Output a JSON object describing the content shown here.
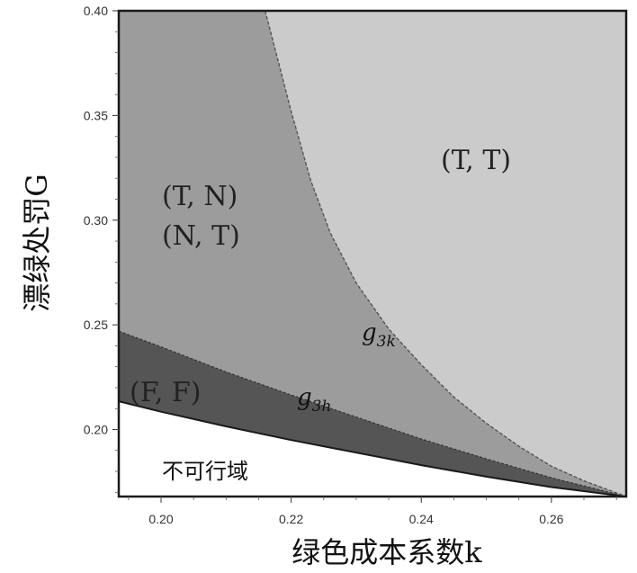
{
  "chart_data": {
    "type": "area",
    "xlabel": "绿色成本系数k",
    "ylabel": "漂绿处罚G",
    "xlim": [
      0.1935,
      0.2715
    ],
    "ylim": [
      0.168,
      0.4
    ],
    "x_ticks": [
      "0.20",
      "0.22",
      "0.24",
      "0.26"
    ],
    "x_tick_values": [
      0.2,
      0.22,
      0.24,
      0.26
    ],
    "y_ticks": [
      "0.20",
      "0.25",
      "0.30",
      "0.35",
      "0.40"
    ],
    "y_tick_values": [
      0.2,
      0.25,
      0.3,
      0.35,
      0.4
    ],
    "colors": {
      "TT": "#cbcbcb",
      "TN": "#9c9c9c",
      "FF": "#555555",
      "infeasible": "#ffffff",
      "frame": "#1a1a1a"
    },
    "curves": {
      "feasible_boundary": [
        [
          0.1935,
          0.2135
        ],
        [
          0.2,
          0.2085
        ],
        [
          0.21,
          0.2015
        ],
        [
          0.22,
          0.195
        ],
        [
          0.23,
          0.189
        ],
        [
          0.24,
          0.183
        ],
        [
          0.25,
          0.1775
        ],
        [
          0.26,
          0.1725
        ],
        [
          0.2715,
          0.168
        ]
      ],
      "g3h": [
        [
          0.1935,
          0.247
        ],
        [
          0.2,
          0.2395
        ],
        [
          0.21,
          0.2275
        ],
        [
          0.22,
          0.2165
        ],
        [
          0.23,
          0.206
        ],
        [
          0.24,
          0.1955
        ],
        [
          0.25,
          0.186
        ],
        [
          0.26,
          0.177
        ],
        [
          0.2715,
          0.168
        ]
      ],
      "g3k": [
        [
          0.216,
          0.4
        ],
        [
          0.218,
          0.376
        ],
        [
          0.22,
          0.352
        ],
        [
          0.223,
          0.319
        ],
        [
          0.226,
          0.294
        ],
        [
          0.23,
          0.27
        ],
        [
          0.235,
          0.248
        ],
        [
          0.24,
          0.231
        ],
        [
          0.245,
          0.2155
        ],
        [
          0.25,
          0.203
        ],
        [
          0.255,
          0.192
        ],
        [
          0.26,
          0.1825
        ],
        [
          0.265,
          0.1755
        ],
        [
          0.2715,
          0.168
        ]
      ]
    },
    "annotations": {
      "TT": "(T, T)",
      "TN": "(T, N)",
      "NT": "(N, T)",
      "FF": "(F, F)",
      "infeasible": "不可行域",
      "g3k": "g3k",
      "g3h": "g3h"
    }
  }
}
